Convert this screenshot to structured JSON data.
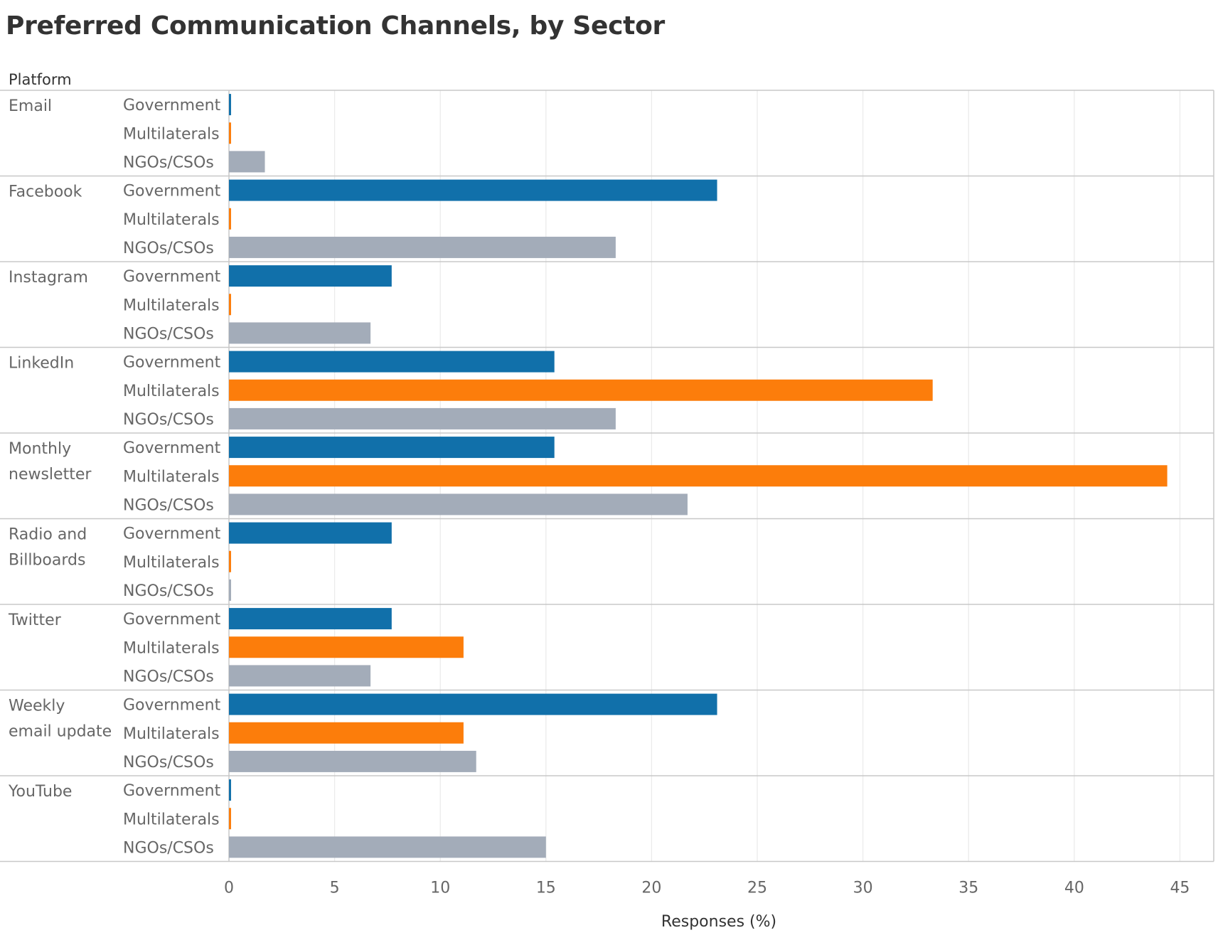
{
  "chart_data": {
    "type": "bar",
    "orientation": "horizontal",
    "title": "Preferred Communication Channels, by Sector",
    "row_header": "Platform",
    "xlabel": "Responses (%)",
    "xlim": [
      0,
      46.6
    ],
    "xticks": [
      0,
      5,
      10,
      15,
      20,
      25,
      30,
      35,
      40,
      45
    ],
    "grid": true,
    "colors": {
      "Government": "#1170aa",
      "Multilaterals": "#fc7d0b",
      "NGOs/CSOs": "#a3acb9"
    },
    "groups": [
      {
        "label": [
          "Email"
        ],
        "bars": [
          {
            "sector": "Government",
            "value": 0.1
          },
          {
            "sector": "Multilaterals",
            "value": 0.1
          },
          {
            "sector": "NGOs/CSOs",
            "value": 1.7
          }
        ]
      },
      {
        "label": [
          "Facebook"
        ],
        "bars": [
          {
            "sector": "Government",
            "value": 23.1
          },
          {
            "sector": "Multilaterals",
            "value": 0.1
          },
          {
            "sector": "NGOs/CSOs",
            "value": 18.3
          }
        ]
      },
      {
        "label": [
          "Instagram"
        ],
        "bars": [
          {
            "sector": "Government",
            "value": 7.7
          },
          {
            "sector": "Multilaterals",
            "value": 0.1
          },
          {
            "sector": "NGOs/CSOs",
            "value": 6.7
          }
        ]
      },
      {
        "label": [
          "LinkedIn"
        ],
        "bars": [
          {
            "sector": "Government",
            "value": 15.4
          },
          {
            "sector": "Multilaterals",
            "value": 33.3
          },
          {
            "sector": "NGOs/CSOs",
            "value": 18.3
          }
        ]
      },
      {
        "label": [
          "Monthly",
          "newsletter"
        ],
        "bars": [
          {
            "sector": "Government",
            "value": 15.4
          },
          {
            "sector": "Multilaterals",
            "value": 44.4
          },
          {
            "sector": "NGOs/CSOs",
            "value": 21.7
          }
        ]
      },
      {
        "label": [
          "Radio and",
          "Billboards"
        ],
        "bars": [
          {
            "sector": "Government",
            "value": 7.7
          },
          {
            "sector": "Multilaterals",
            "value": 0.1
          },
          {
            "sector": "NGOs/CSOs",
            "value": 0.1
          }
        ]
      },
      {
        "label": [
          "Twitter"
        ],
        "bars": [
          {
            "sector": "Government",
            "value": 7.7
          },
          {
            "sector": "Multilaterals",
            "value": 11.1
          },
          {
            "sector": "NGOs/CSOs",
            "value": 6.7
          }
        ]
      },
      {
        "label": [
          "Weekly",
          "email update"
        ],
        "bars": [
          {
            "sector": "Government",
            "value": 23.1
          },
          {
            "sector": "Multilaterals",
            "value": 11.1
          },
          {
            "sector": "NGOs/CSOs",
            "value": 11.7
          }
        ]
      },
      {
        "label": [
          "YouTube"
        ],
        "bars": [
          {
            "sector": "Government",
            "value": 0.1
          },
          {
            "sector": "Multilaterals",
            "value": 0.1
          },
          {
            "sector": "NGOs/CSOs",
            "value": 15.0
          }
        ]
      }
    ]
  }
}
